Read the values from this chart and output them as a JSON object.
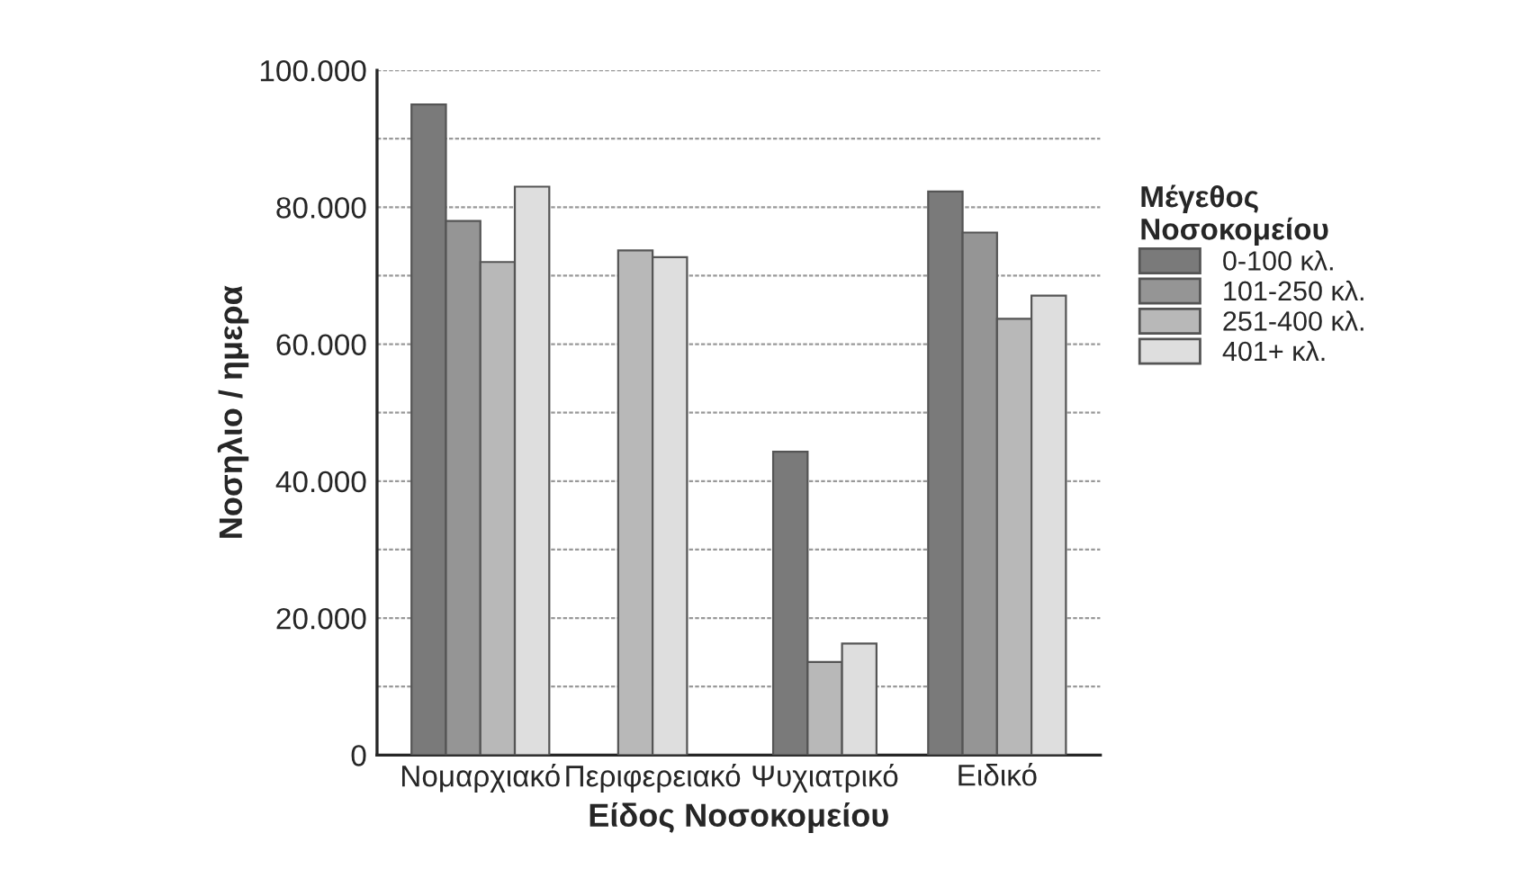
{
  "chart_data": {
    "type": "bar",
    "categories": [
      "Νομαρχιακό",
      "Περιφερειακό",
      "Ψυχιατρικό",
      "Ειδικό"
    ],
    "series": [
      {
        "name": "0-100 κλ.",
        "color": "#7a7a7a",
        "values": [
          95000,
          null,
          44300,
          82300
        ]
      },
      {
        "name": "101-250 κλ.",
        "color": "#959595",
        "values": [
          78000,
          null,
          null,
          76300
        ]
      },
      {
        "name": "251-400 κλ.",
        "color": "#b8b8b8",
        "values": [
          72000,
          73700,
          13600,
          63700
        ]
      },
      {
        "name": "401+ κλ.",
        "color": "#dedede",
        "values": [
          83000,
          72700,
          16300,
          67100
        ]
      }
    ],
    "xlabel": "Είδος Νοσοκομείου",
    "ylabel": "Νοσηλιο / ημερα",
    "legend_title": "Μέγεθος\nΝοσοκομείου",
    "legend": "right",
    "ylim": [
      0,
      100000
    ],
    "yticks": [
      {
        "value": 0,
        "label": "0"
      },
      {
        "value": 10000,
        "label": null
      },
      {
        "value": 20000,
        "label": "20.000"
      },
      {
        "value": 30000,
        "label": null
      },
      {
        "value": 40000,
        "label": "40.000"
      },
      {
        "value": 50000,
        "label": null
      },
      {
        "value": 60000,
        "label": "60.000"
      },
      {
        "value": 70000,
        "label": null
      },
      {
        "value": 80000,
        "label": "80.000"
      },
      {
        "value": 90000,
        "label": null
      },
      {
        "value": 100000,
        "label": "100.000"
      }
    ],
    "grid": "y"
  }
}
